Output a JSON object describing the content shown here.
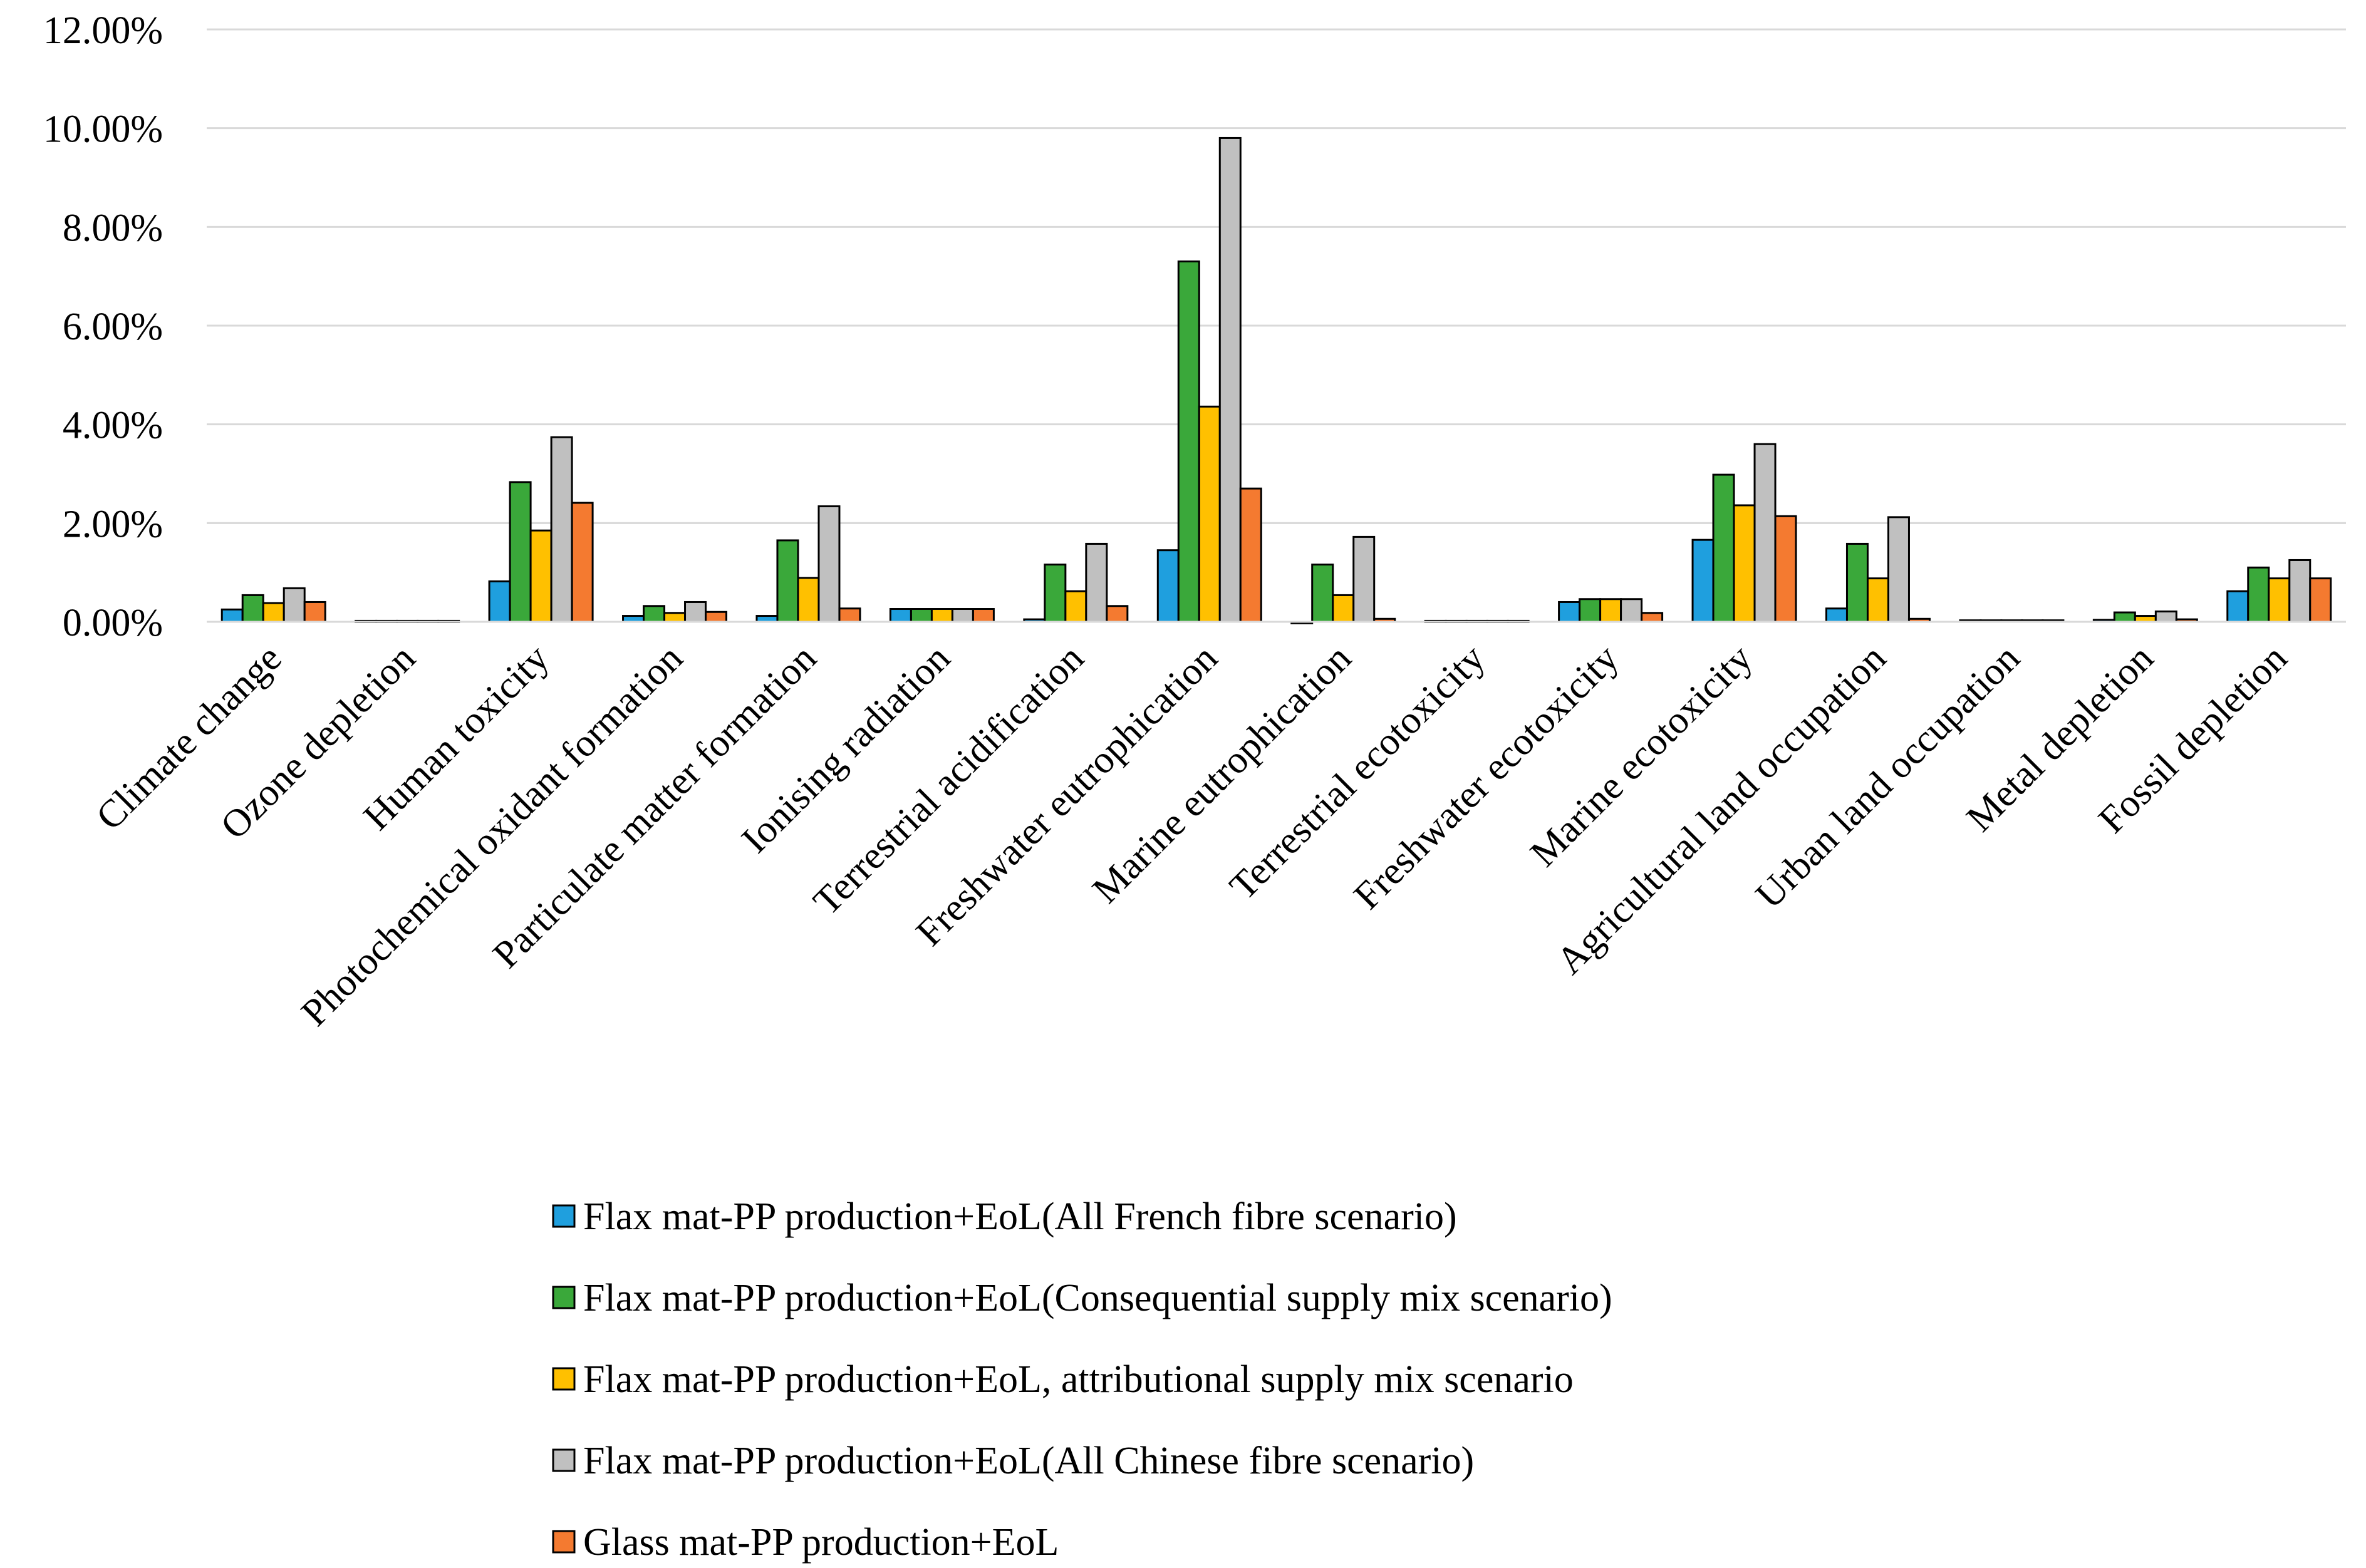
{
  "chart_data": {
    "type": "bar",
    "title": "",
    "xlabel": "",
    "ylabel": "",
    "ylim": [
      0,
      0.12
    ],
    "yticks": [
      0,
      0.02,
      0.04,
      0.06,
      0.08,
      0.1,
      0.12
    ],
    "ytick_labels": [
      "0.00%",
      "2.00%",
      "4.00%",
      "6.00%",
      "8.00%",
      "10.00%",
      "12.00%"
    ],
    "grid": "horizontal",
    "legend_position": "bottom",
    "categories": [
      "Climate change",
      "Ozone depletion",
      "Human toxicity",
      "Photochemical oxidant formation",
      "Particulate matter formation",
      "Ionising radiation",
      "Terrestrial acidification",
      "Freshwater eutrophication",
      "Marine eutrophication",
      "Terrestrial ecotoxicity",
      "Freshwater ecotoxicity",
      "Marine ecotoxicity",
      "Agricultural land occupation",
      "Urban land occupation",
      "Metal depletion",
      "Fossil depletion"
    ],
    "series": [
      {
        "name": "Flax mat-PP production+EoL(All French fibre scenario)",
        "color": "#1f9fde",
        "values": [
          0.0025,
          0.0002,
          0.0082,
          0.0012,
          0.0012,
          0.0026,
          0.0005,
          0.0145,
          -0.0003,
          0.0002,
          0.004,
          0.0166,
          0.0027,
          0.0003,
          0.0004,
          0.0062
        ]
      },
      {
        "name": "Flax mat-PP production+EoL(Consequential supply mix scenario)",
        "color": "#3aa83a",
        "values": [
          0.0054,
          0.0002,
          0.0283,
          0.0032,
          0.0165,
          0.0026,
          0.0116,
          0.073,
          0.0116,
          0.0002,
          0.0046,
          0.0298,
          0.0158,
          0.0003,
          0.0019,
          0.011
        ]
      },
      {
        "name": "Flax mat-PP production+EoL, attributional supply mix scenario",
        "color": "#ffc000",
        "values": [
          0.0038,
          0.0002,
          0.0185,
          0.0018,
          0.0089,
          0.0026,
          0.0062,
          0.0436,
          0.0054,
          0.0002,
          0.0046,
          0.0236,
          0.0088,
          0.0003,
          0.0012,
          0.0088
        ]
      },
      {
        "name": "Flax mat-PP production+EoL(All Chinese fibre scenario)",
        "color": "#c0c0c0",
        "values": [
          0.0068,
          0.0002,
          0.0374,
          0.004,
          0.0234,
          0.0026,
          0.0158,
          0.098,
          0.0172,
          0.0002,
          0.0046,
          0.036,
          0.0212,
          0.0003,
          0.0021,
          0.0125
        ]
      },
      {
        "name": "Glass mat-PP production+EoL",
        "color": "#f47a30",
        "values": [
          0.004,
          0.0002,
          0.0241,
          0.002,
          0.0027,
          0.0026,
          0.0032,
          0.027,
          0.0006,
          0.0002,
          0.0018,
          0.0214,
          0.0006,
          0.0003,
          0.0005,
          0.0088
        ]
      }
    ]
  }
}
